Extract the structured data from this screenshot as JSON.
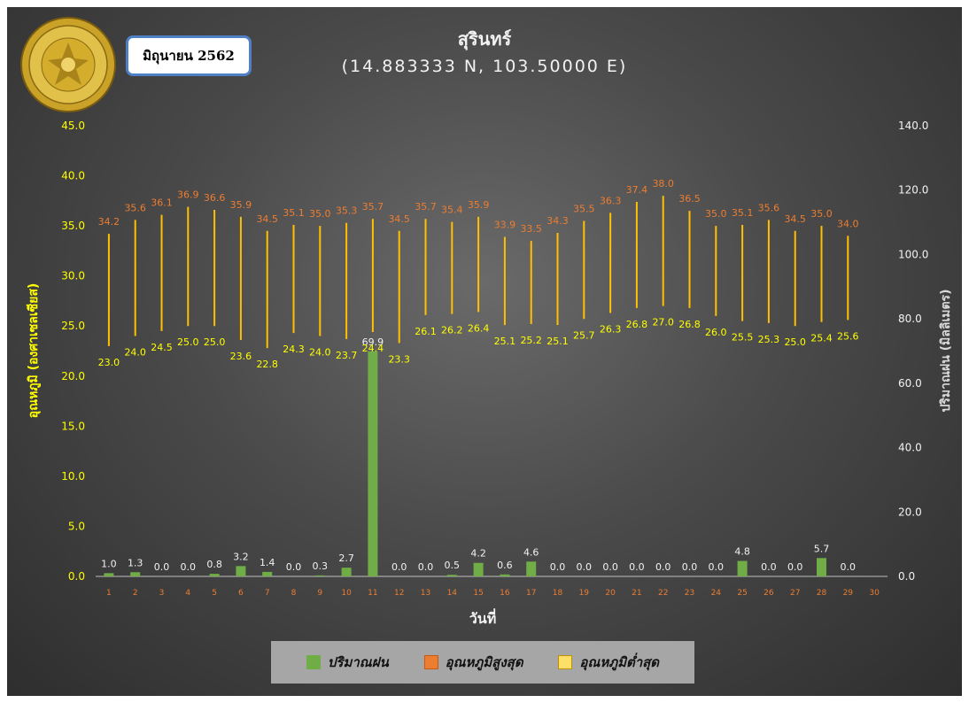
{
  "header": {
    "station": "สุรินทร์",
    "coordinates": "(14.883333 N, 103.50000 E)",
    "month": "มิถุนายน 2562",
    "logo_text": "กรมอุตุนิยมวิทยา METEOROLOGICAL DEPARTMENT"
  },
  "colors": {
    "rain": "#70ad47",
    "tmax_label": "#ed7d31",
    "tmin_label": "#ffff00",
    "range_line": "#ffc000",
    "left_axis_title": "#ffff00",
    "right_axis_title": "#d9d9d9",
    "x_ticks": "#ed7d31"
  },
  "chart_data": {
    "type": "bar",
    "xlabel": "วันที่",
    "y_left_label": "อุณหภูมิ (องศาเซลเซียส)",
    "y_right_label": "ปริมาณฝน (มิลลิเมตร)",
    "y_left_lim": [
      0,
      45
    ],
    "y_right_lim": [
      0,
      140
    ],
    "y_left_ticks": [
      "0.0",
      "5.0",
      "10.0",
      "15.0",
      "20.0",
      "25.0",
      "30.0",
      "35.0",
      "40.0",
      "45.0"
    ],
    "y_right_ticks": [
      "0.0",
      "20.0",
      "40.0",
      "60.0",
      "80.0",
      "100.0",
      "120.0",
      "140.0"
    ],
    "categories": [
      "1",
      "2",
      "3",
      "4",
      "5",
      "6",
      "7",
      "8",
      "9",
      "10",
      "11",
      "12",
      "13",
      "14",
      "15",
      "16",
      "17",
      "18",
      "19",
      "20",
      "21",
      "22",
      "23",
      "24",
      "25",
      "26",
      "27",
      "28",
      "29",
      "30"
    ],
    "series": [
      {
        "name": "ปริมาณฝน",
        "axis": "right",
        "values": [
          1.0,
          1.3,
          0.0,
          0.0,
          0.8,
          3.2,
          1.4,
          0.0,
          0.3,
          2.7,
          69.9,
          0.0,
          0.0,
          0.5,
          4.2,
          0.6,
          4.6,
          0.0,
          0.0,
          0.0,
          0.0,
          0.0,
          0.0,
          0.0,
          4.8,
          0.0,
          0.0,
          5.7,
          0.0,
          null
        ]
      },
      {
        "name": "อุณหภูมิสูงสุด",
        "axis": "left",
        "values": [
          34.2,
          35.6,
          36.1,
          36.9,
          36.6,
          35.9,
          34.5,
          35.1,
          35.0,
          35.3,
          35.7,
          34.5,
          35.7,
          35.4,
          35.9,
          33.9,
          33.5,
          34.3,
          35.5,
          36.3,
          37.4,
          38.0,
          36.5,
          35.0,
          35.1,
          35.6,
          34.5,
          35.0,
          34.0,
          null
        ]
      },
      {
        "name": "อุณหภูมิต่ำสุด",
        "axis": "left",
        "values": [
          23.0,
          24.0,
          24.5,
          25.0,
          25.0,
          23.6,
          22.8,
          24.3,
          24.0,
          23.7,
          24.4,
          23.3,
          26.1,
          26.2,
          26.4,
          25.1,
          25.2,
          25.1,
          25.7,
          26.3,
          26.8,
          27.0,
          26.8,
          26.0,
          25.5,
          25.3,
          25.0,
          25.4,
          25.6,
          null
        ]
      }
    ],
    "legend_position": "bottom",
    "grid": false
  }
}
